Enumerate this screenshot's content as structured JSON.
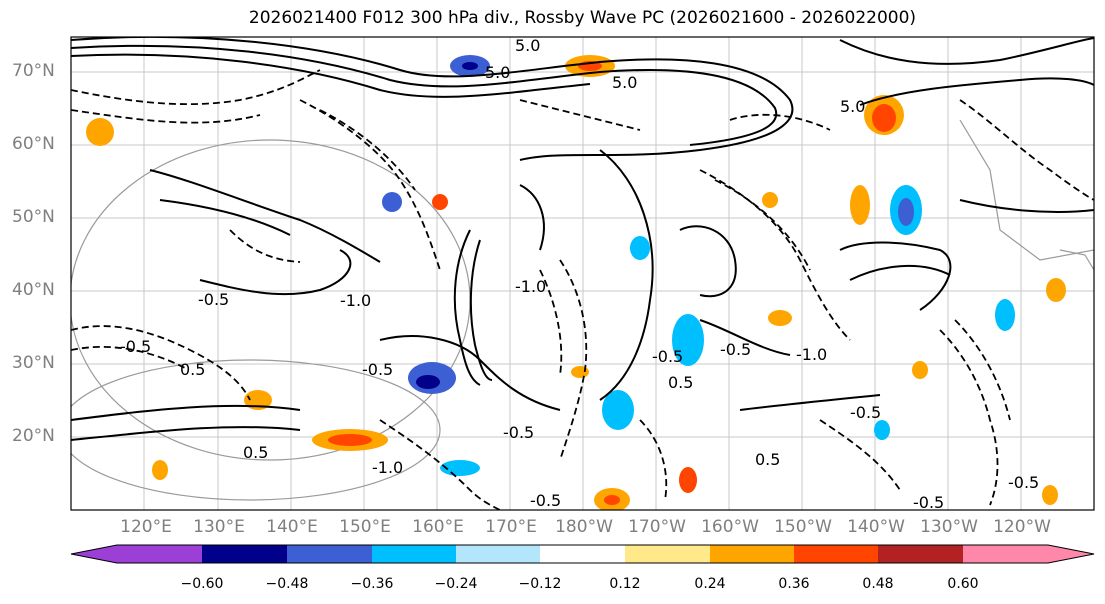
{
  "title": "2026021400 F012 300 hPa div., Rossby Wave PC (2026021600 - 2026022000)",
  "lat_labels": [
    "70°N",
    "60°N",
    "50°N",
    "40°N",
    "30°N",
    "20°N"
  ],
  "lon_labels": [
    "120°E",
    "130°E",
    "140°E",
    "150°E",
    "160°E",
    "170°E",
    "180°W",
    "170°W",
    "160°W",
    "150°W",
    "140°W",
    "130°W",
    "120°W"
  ],
  "contour_labels": [
    "5.0",
    "5.0",
    "5.0",
    "5.0",
    "-0.5",
    "-0.5",
    "-1.0",
    "0.5",
    "-0.5",
    "-1.0",
    "-0.5",
    "0.5",
    "-0.5",
    "0.5",
    "-1.0",
    "-0.5",
    "-1.0",
    "-0.5",
    "-0.5",
    "0.5",
    "-0.5",
    "-0.5"
  ],
  "colorbar": {
    "ticks": [
      "−0.60",
      "−0.48",
      "−0.36",
      "−0.24",
      "−0.12",
      "0.12",
      "0.24",
      "0.36",
      "0.48",
      "0.60"
    ],
    "colors": [
      "#9b3fd6",
      "#00008b",
      "#3c5fd4",
      "#00bfff",
      "#b3e6fb",
      "#ffffff",
      "#ffe98a",
      "#ffa500",
      "#ff4500",
      "#b22222",
      "#ff88aa"
    ]
  }
}
